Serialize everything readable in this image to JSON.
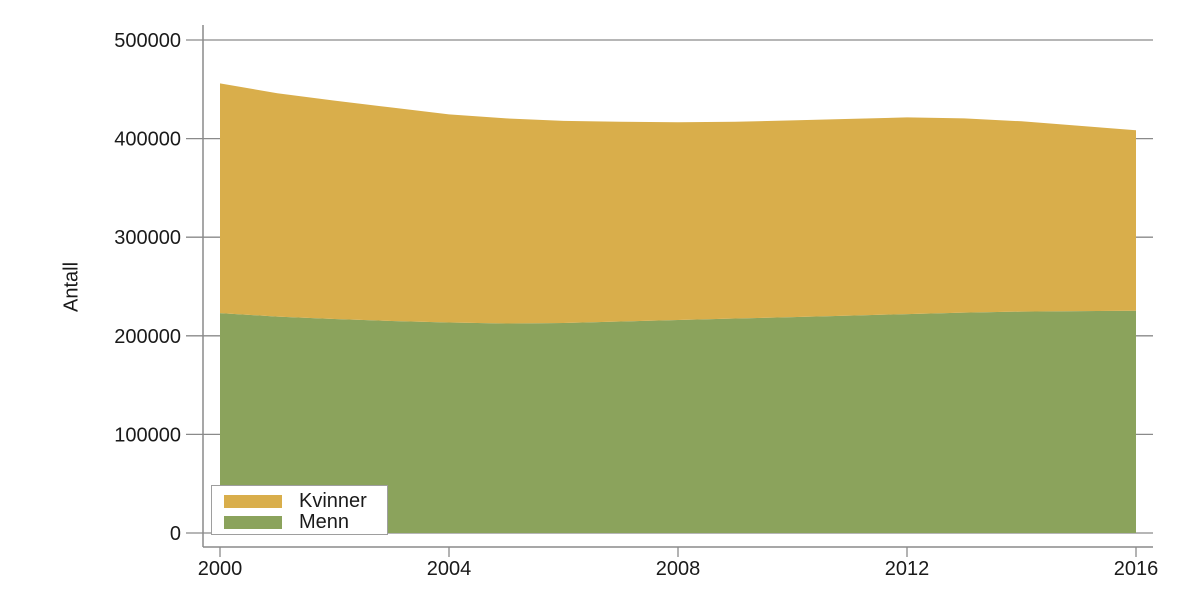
{
  "figure": {
    "background": "#ffffff",
    "y_axis_title": "Antall",
    "colors": {
      "axis_and_grid": "#8a8a8a",
      "text": "#1a1a1a",
      "legend_border": "#9e9e9e",
      "kvinner": "#d9ae4b",
      "menn": "#8ba35c"
    },
    "legend": {
      "position": "bottom-left-inside",
      "items": [
        {
          "label": "Kvinner",
          "color": "#d9ae4b"
        },
        {
          "label": "Menn",
          "color": "#8ba35c"
        }
      ]
    }
  },
  "chart_data": {
    "type": "area",
    "stacked": true,
    "title": "",
    "xlabel": "",
    "ylabel": "Antall",
    "xlim": [
      2000,
      2016
    ],
    "ylim": [
      0,
      500000
    ],
    "xticks": [
      2000,
      2004,
      2008,
      2012,
      2016
    ],
    "yticks": [
      0,
      100000,
      200000,
      300000,
      400000,
      500000
    ],
    "grid": "horizontal gray gridlines; fully visible at 500000, elsewhere only stubs beyond the filled area",
    "legend_position": "bottom-left-inside",
    "x": [
      2000,
      2001,
      2002,
      2003,
      2004,
      2005,
      2006,
      2007,
      2008,
      2009,
      2010,
      2011,
      2012,
      2013,
      2014,
      2015,
      2016
    ],
    "series": [
      {
        "name": "Kvinner",
        "color": "#d9ae4b",
        "values": [
          233000,
          226500,
          221500,
          216500,
          211000,
          208000,
          205000,
          202500,
          200500,
          199500,
          199500,
          199500,
          199500,
          197000,
          193000,
          188000,
          183000
        ]
      },
      {
        "name": "Menn",
        "color": "#8ba35c",
        "values": [
          223000,
          219500,
          217000,
          215000,
          213500,
          212500,
          213000,
          214500,
          216000,
          217500,
          219000,
          220500,
          222000,
          223500,
          224500,
          225000,
          225500
        ]
      }
    ],
    "stack_order_bottom_to_top": [
      "Menn",
      "Kvinner"
    ],
    "totals": [
      456000,
      446000,
      438500,
      431500,
      424500,
      420500,
      418000,
      417000,
      416500,
      417000,
      418500,
      420000,
      421500,
      420500,
      417500,
      413000,
      408500
    ]
  }
}
